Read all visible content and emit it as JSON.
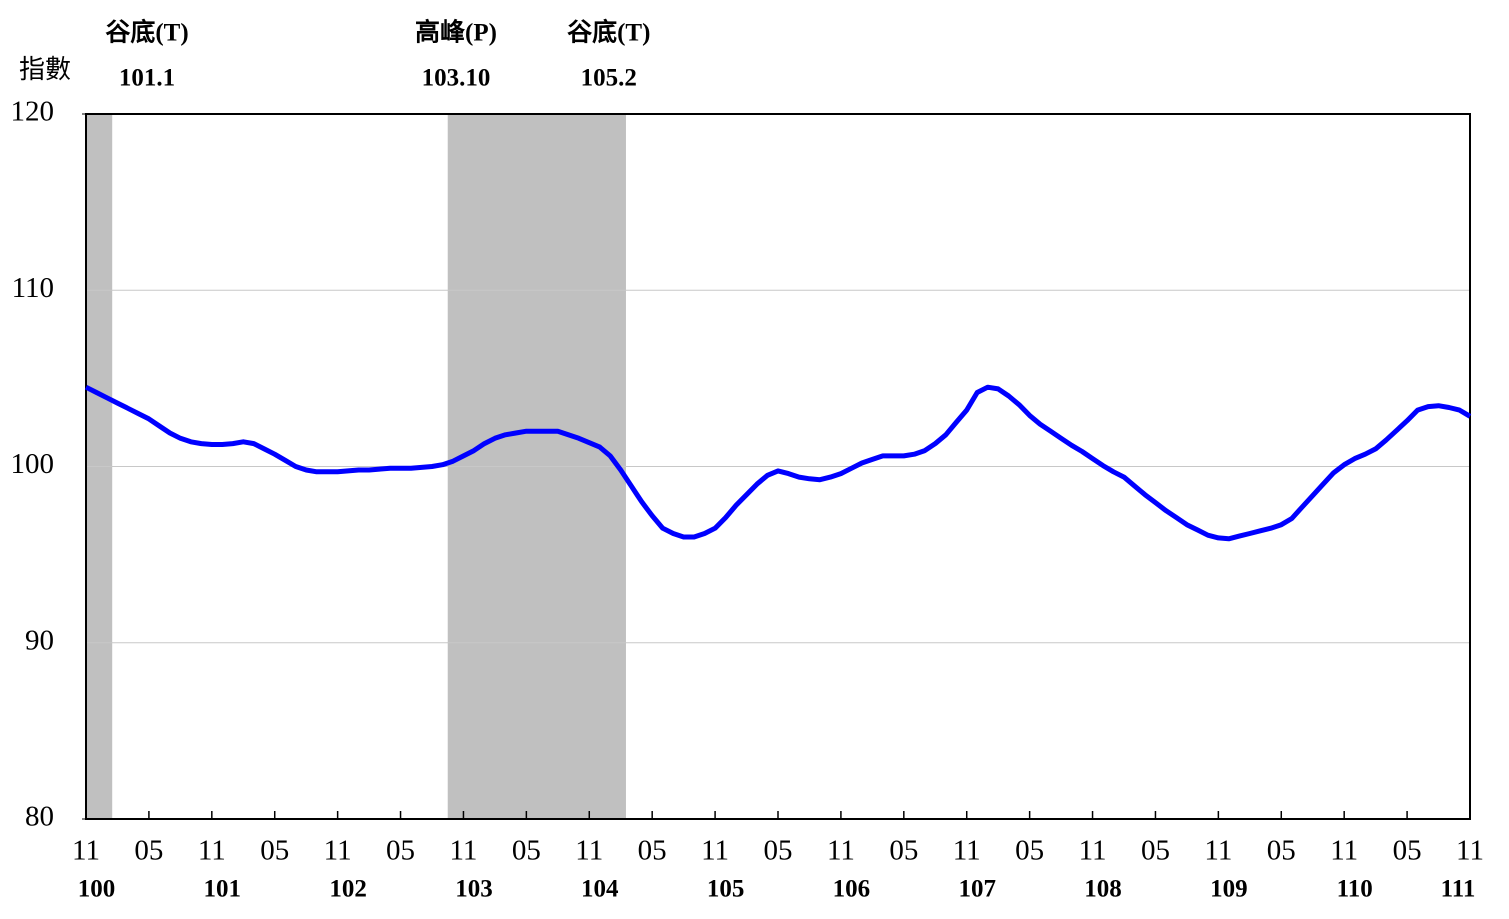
{
  "chart_data": {
    "type": "line",
    "y_label": "指數",
    "categories": [
      "11",
      null,
      null,
      null,
      null,
      null,
      "05",
      null,
      null,
      null,
      null,
      null,
      "11",
      null,
      null,
      null,
      null,
      null,
      "05",
      null,
      null,
      null,
      null,
      null,
      "11",
      null,
      null,
      null,
      null,
      null,
      "05",
      null,
      null,
      null,
      null,
      null,
      "11",
      null,
      null,
      null,
      null,
      null,
      "05",
      null,
      null,
      null,
      null,
      null,
      "11",
      null,
      null,
      null,
      null,
      null,
      "05",
      null,
      null,
      null,
      null,
      null,
      "11",
      null,
      null,
      null,
      null,
      null,
      "05",
      null,
      null,
      null,
      null,
      null,
      "11",
      null,
      null,
      null,
      null,
      null,
      "05",
      null,
      null,
      null,
      null,
      null,
      "11",
      null,
      null,
      null,
      null,
      null,
      "05",
      null,
      null,
      null,
      null,
      null,
      "11",
      null,
      null,
      null,
      null,
      null,
      "05",
      null,
      null,
      null,
      null,
      null,
      "11",
      null,
      null,
      null,
      null,
      null,
      "05",
      null,
      null,
      null,
      null,
      null,
      "11",
      null,
      null,
      null,
      null,
      null,
      "05",
      null,
      null,
      null,
      null,
      null,
      "11"
    ],
    "year_labels": [
      "100",
      "101",
      "102",
      "103",
      "104",
      "105",
      "106",
      "107",
      "108",
      "109",
      "110",
      "111"
    ],
    "series": [
      {
        "color": "#0000ff",
        "values": [
          104.5,
          104.2,
          103.9,
          103.6,
          103.3,
          103.0,
          102.7,
          102.3,
          101.9,
          101.6,
          101.4,
          101.3,
          101.25,
          101.25,
          101.3,
          101.4,
          101.3,
          101.0,
          100.7,
          100.35,
          100.0,
          99.8,
          99.7,
          99.7,
          99.7,
          99.75,
          99.8,
          99.8,
          99.85,
          99.9,
          99.9,
          99.9,
          99.95,
          100.0,
          100.1,
          100.3,
          100.6,
          100.9,
          101.3,
          101.6,
          101.8,
          101.9,
          102.0,
          102.0,
          102.0,
          102.0,
          101.8,
          101.6,
          101.35,
          101.1,
          100.6,
          99.8,
          98.9,
          98.0,
          97.2,
          96.5,
          96.2,
          96.0,
          96.0,
          96.2,
          96.5,
          97.1,
          97.8,
          98.4,
          99.0,
          99.5,
          99.75,
          99.6,
          99.4,
          99.3,
          99.25,
          99.4,
          99.6,
          99.9,
          100.2,
          100.4,
          100.6,
          100.6,
          100.6,
          100.7,
          100.9,
          101.3,
          101.8,
          102.5,
          103.2,
          104.2,
          104.5,
          104.4,
          104.0,
          103.5,
          102.9,
          102.4,
          102.0,
          101.6,
          101.2,
          100.85,
          100.45,
          100.05,
          99.7,
          99.4,
          98.9,
          98.4,
          97.95,
          97.5,
          97.1,
          96.7,
          96.4,
          96.1,
          95.95,
          95.9,
          96.05,
          96.2,
          96.35,
          96.5,
          96.7,
          97.05,
          97.7,
          98.35,
          99.0,
          99.65,
          100.1,
          100.45,
          100.7,
          101.0,
          101.5,
          102.05,
          102.6,
          103.2,
          103.4,
          103.45,
          103.35,
          103.2,
          102.85
        ]
      }
    ],
    "turning_points": [
      {
        "label": "谷底(T)",
        "date": "101.1"
      },
      {
        "label": "高峰(P)",
        "date": "103.10"
      },
      {
        "label": "谷底(T)",
        "date": "105.2"
      }
    ],
    "shade_color": "#c0c0c0",
    "ylim": [
      80,
      120
    ],
    "yticks": [
      80,
      90,
      100,
      110,
      120
    ],
    "grid": true
  }
}
